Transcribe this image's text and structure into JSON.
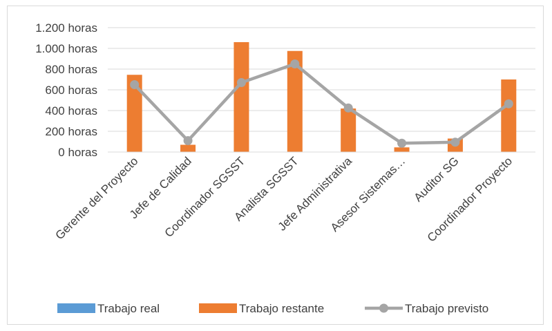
{
  "chart_data": {
    "type": "bar",
    "title": "",
    "xlabel": "",
    "ylabel": "",
    "categories": [
      "Gerente del Proyecto",
      "Jefe de Calidad",
      "Coordinador SGSST",
      "Analista SGSST",
      "Jefe Administrativa",
      "Asesor Sistemas…",
      "Auditor SG",
      "Coordinador Proyecto"
    ],
    "y_tick_labels": [
      "0 horas",
      "200 horas",
      "400 horas",
      "600 horas",
      "800 horas",
      "1.000 horas",
      "1.200 horas"
    ],
    "ylim": [
      0,
      1200
    ],
    "y_ticks": [
      0,
      200,
      400,
      600,
      800,
      1000,
      1200
    ],
    "grid": true,
    "legend_position": "bottom",
    "series": [
      {
        "name": "Trabajo real",
        "type": "bar",
        "color": "#5b9bd5",
        "values": [
          0,
          0,
          0,
          0,
          0,
          0,
          0,
          0
        ]
      },
      {
        "name": "Trabajo restante",
        "type": "bar",
        "color": "#ed7d31",
        "values": [
          745,
          70,
          1060,
          975,
          420,
          45,
          130,
          700
        ]
      },
      {
        "name": "Trabajo previsto",
        "type": "line",
        "color": "#a5a5a5",
        "values": [
          650,
          110,
          670,
          850,
          425,
          85,
          95,
          465
        ]
      }
    ]
  }
}
